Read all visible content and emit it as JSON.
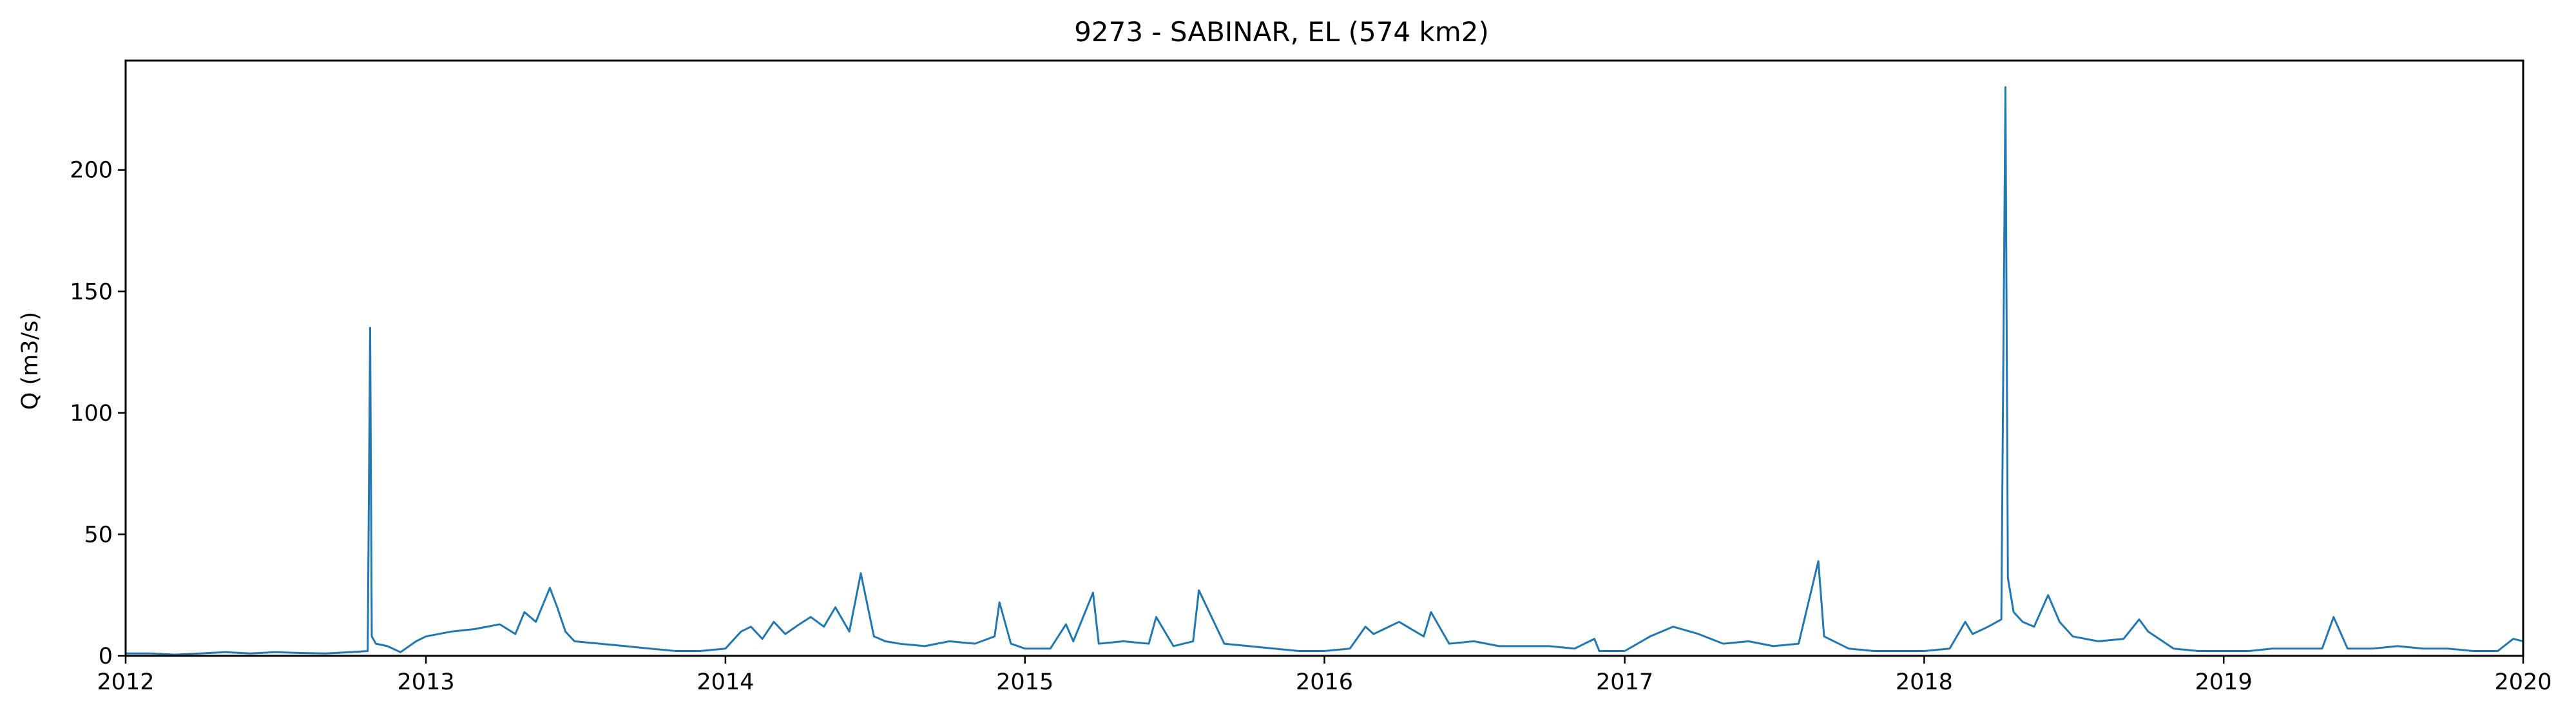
{
  "chart_data": {
    "type": "line",
    "title": "9273 - SABINAR, EL (574 km2)",
    "xlabel": "",
    "ylabel": "Q (m3/s)",
    "xlim": [
      "2012-01-01",
      "2020-01-01"
    ],
    "ylim": [
      0,
      245
    ],
    "x_ticks": [
      "2012",
      "2013",
      "2014",
      "2015",
      "2016",
      "2017",
      "2018",
      "2019",
      "2020"
    ],
    "y_ticks": [
      0,
      50,
      100,
      150,
      200
    ],
    "grid": false,
    "line_color": "#1f77b4",
    "series": [
      {
        "x": [
          "2012-01-01",
          "2012-02-01",
          "2012-03-01",
          "2012-04-01",
          "2012-05-01",
          "2012-06-01",
          "2012-07-01",
          "2012-08-01",
          "2012-09-01",
          "2012-10-01",
          "2012-10-22",
          "2012-10-25",
          "2012-10-27",
          "2012-11-01",
          "2012-11-15",
          "2012-12-01",
          "2012-12-20",
          "2013-01-01",
          "2013-02-01",
          "2013-03-01",
          "2013-04-01",
          "2013-04-20",
          "2013-05-01",
          "2013-05-15",
          "2013-06-01",
          "2013-06-10",
          "2013-06-20",
          "2013-07-01",
          "2013-08-01",
          "2013-09-01",
          "2013-10-01",
          "2013-11-01",
          "2013-12-01",
          "2014-01-01",
          "2014-01-20",
          "2014-02-01",
          "2014-02-15",
          "2014-03-01",
          "2014-03-15",
          "2014-04-01",
          "2014-04-15",
          "2014-05-01",
          "2014-05-15",
          "2014-06-01",
          "2014-06-15",
          "2014-07-01",
          "2014-07-15",
          "2014-08-01",
          "2014-09-01",
          "2014-10-01",
          "2014-11-01",
          "2014-11-25",
          "2014-12-01",
          "2014-12-15",
          "2015-01-01",
          "2015-02-01",
          "2015-02-20",
          "2015-03-01",
          "2015-03-25",
          "2015-04-01",
          "2015-05-01",
          "2015-06-01",
          "2015-06-10",
          "2015-07-01",
          "2015-07-25",
          "2015-08-01",
          "2015-09-01",
          "2015-10-01",
          "2015-11-01",
          "2015-12-01",
          "2016-01-01",
          "2016-02-01",
          "2016-02-20",
          "2016-03-01",
          "2016-04-01",
          "2016-05-01",
          "2016-05-10",
          "2016-06-01",
          "2016-07-01",
          "2016-08-01",
          "2016-09-01",
          "2016-10-01",
          "2016-11-01",
          "2016-11-25",
          "2016-12-01",
          "2017-01-01",
          "2017-02-01",
          "2017-03-01",
          "2017-04-01",
          "2017-05-01",
          "2017-06-01",
          "2017-07-01",
          "2017-08-01",
          "2017-08-25",
          "2017-09-01",
          "2017-10-01",
          "2017-11-01",
          "2017-12-01",
          "2018-01-01",
          "2018-02-01",
          "2018-02-20",
          "2018-03-01",
          "2018-03-20",
          "2018-04-05",
          "2018-04-10",
          "2018-04-13",
          "2018-04-20",
          "2018-05-01",
          "2018-05-15",
          "2018-06-01",
          "2018-06-15",
          "2018-07-01",
          "2018-08-01",
          "2018-09-01",
          "2018-09-20",
          "2018-10-01",
          "2018-11-01",
          "2018-12-01",
          "2019-01-01",
          "2019-02-01",
          "2019-03-01",
          "2019-04-01",
          "2019-05-01",
          "2019-05-15",
          "2019-06-01",
          "2019-07-01",
          "2019-08-01",
          "2019-09-01",
          "2019-10-01",
          "2019-11-01",
          "2019-12-01",
          "2019-12-20",
          "2020-01-01"
        ],
        "values": [
          1,
          1,
          0.5,
          1,
          1.5,
          1,
          1.5,
          1.2,
          1,
          1.5,
          2,
          135,
          8,
          5,
          4,
          1.5,
          6,
          8,
          10,
          11,
          13,
          9,
          18,
          14,
          28,
          20,
          10,
          6,
          5,
          4,
          3,
          2,
          2,
          3,
          10,
          12,
          7,
          14,
          9,
          13,
          16,
          12,
          20,
          10,
          34,
          8,
          6,
          5,
          4,
          6,
          5,
          8,
          22,
          5,
          3,
          3,
          13,
          6,
          26,
          5,
          6,
          5,
          16,
          4,
          6,
          27,
          5,
          4,
          3,
          2,
          2,
          3,
          12,
          9,
          14,
          8,
          18,
          5,
          6,
          4,
          4,
          4,
          3,
          7,
          2,
          2,
          8,
          12,
          9,
          5,
          6,
          4,
          5,
          39,
          8,
          3,
          2,
          2,
          2,
          3,
          14,
          9,
          12,
          15,
          234,
          32,
          18,
          14,
          12,
          25,
          14,
          8,
          6,
          7,
          15,
          10,
          3,
          2,
          2,
          2,
          3,
          3,
          3,
          16,
          3,
          3,
          4,
          3,
          3,
          2,
          2,
          7,
          6
        ]
      }
    ]
  }
}
